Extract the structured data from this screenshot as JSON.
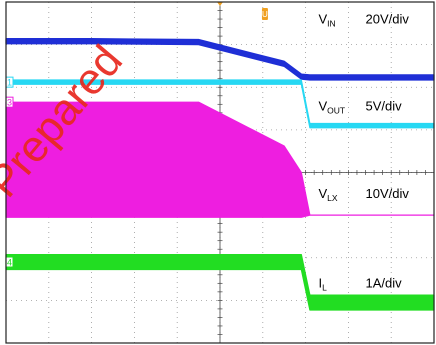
{
  "chart_data": {
    "type": "line",
    "title": "",
    "xlabel": "",
    "ylabel": "",
    "grid": true,
    "divisions": {
      "x": 10,
      "y": 8
    },
    "x": [
      0,
      2,
      4.5,
      6.5,
      6.9,
      7.1,
      10
    ],
    "series": [
      {
        "name": "VIN",
        "symbol": "V",
        "subscript": "IN",
        "scale": "20V/div",
        "marker": "",
        "color": "#1f2fd6",
        "band": 0.12,
        "values": [
          3.08,
          3.08,
          3.06,
          2.55,
          2.25,
          2.23,
          2.23
        ]
      },
      {
        "name": "VOUT",
        "symbol": "V",
        "subscript": "OUT",
        "scale": "5V/div",
        "marker": "1",
        "color": "#27d8f3",
        "band": 0.1,
        "values": [
          2.12,
          2.12,
          2.12,
          2.12,
          2.12,
          1.1,
          1.1
        ]
      },
      {
        "name": "VLX",
        "symbol": "V",
        "subscript": "LX",
        "scale": "10V/div",
        "marker": "3",
        "color": "#ee1ee0",
        "fill_bottom": [
          -1.05,
          -1.05,
          -1.05,
          -1.05,
          -1.05,
          -1.0,
          -1.0
        ],
        "values": [
          1.65,
          1.65,
          1.65,
          0.62,
          0.0,
          -1.0,
          -1.0
        ]
      },
      {
        "name": "IL",
        "symbol": "I",
        "subscript": "L",
        "scale": "1A/div",
        "marker": "4",
        "color": "#22dd22",
        "band": 0.35,
        "values": [
          -2.1,
          -2.1,
          -2.1,
          -2.1,
          -2.1,
          -3.05,
          -3.05
        ]
      }
    ],
    "top_marker": "U"
  },
  "watermark": "Prepared"
}
